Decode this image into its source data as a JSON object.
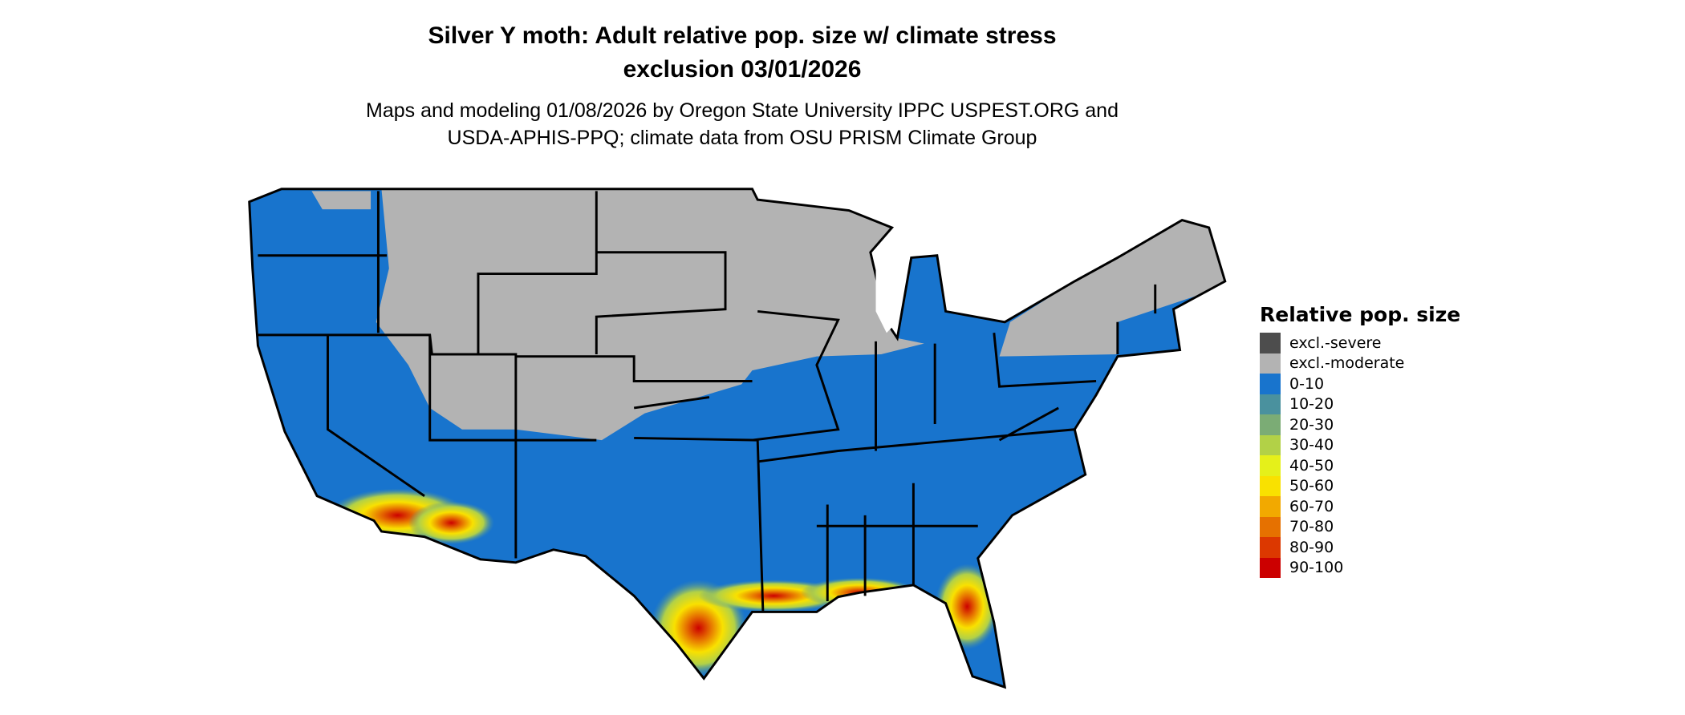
{
  "title": {
    "line1": "Silver Y moth: Adult relative pop. size w/ climate stress",
    "line2": "exclusion 03/01/2026"
  },
  "subtitle": {
    "line1": "Maps and modeling 01/08/2026 by Oregon State University IPPC USPEST.ORG and",
    "line2": "USDA-APHIS-PPQ; climate data from OSU PRISM Climate Group"
  },
  "legend": {
    "title": "Relative pop. size",
    "items": [
      {
        "label": "excl.-severe",
        "color": "#4d4d4d"
      },
      {
        "label": "excl.-moderate",
        "color": "#b3b3b3"
      },
      {
        "label": "0-10",
        "color": "#1874cd"
      },
      {
        "label": "10-20",
        "color": "#4a919e"
      },
      {
        "label": "20-30",
        "color": "#7bac75"
      },
      {
        "label": "30-40",
        "color": "#b2d147"
      },
      {
        "label": "40-50",
        "color": "#e5f01a"
      },
      {
        "label": "50-60",
        "color": "#f9e100"
      },
      {
        "label": "60-70",
        "color": "#f2a900"
      },
      {
        "label": "70-80",
        "color": "#e67100"
      },
      {
        "label": "80-90",
        "color": "#dc3800"
      },
      {
        "label": "90-100",
        "color": "#cc0000"
      }
    ]
  },
  "map": {
    "region": "Contiguous United States",
    "border_color": "#000000"
  }
}
